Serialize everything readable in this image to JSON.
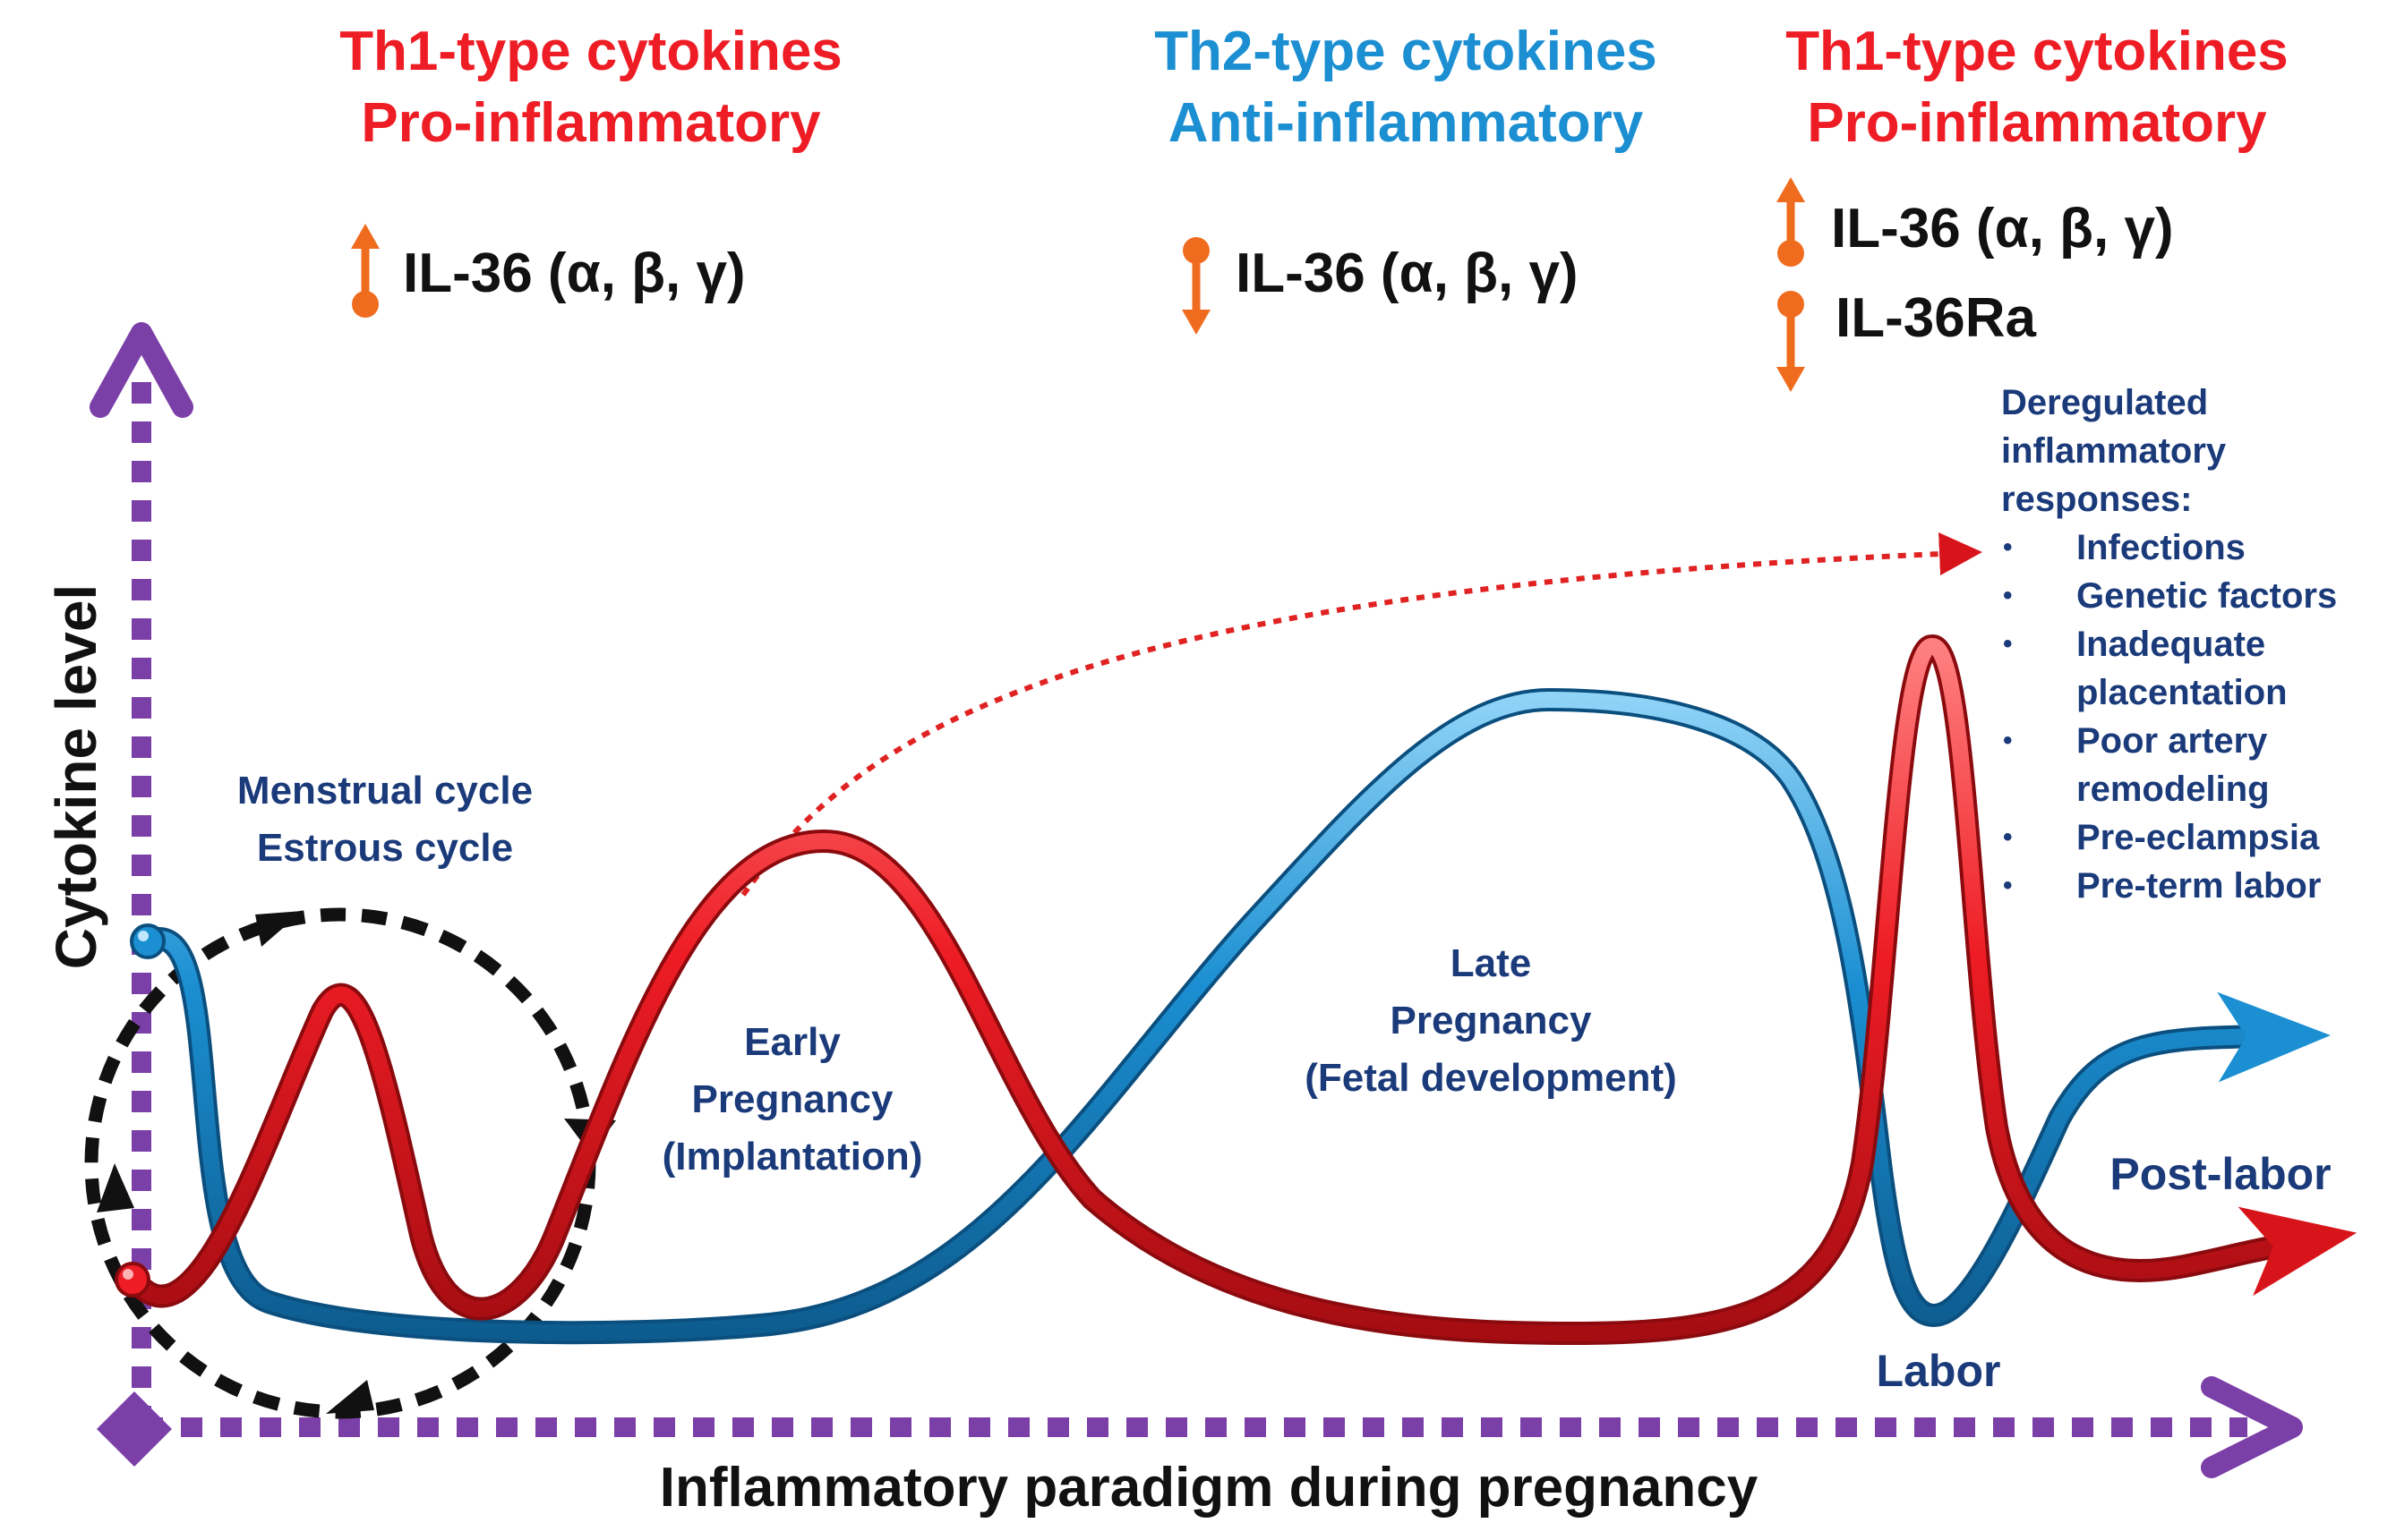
{
  "colors": {
    "th1": "#ee1c24",
    "th2": "#1b8fd2",
    "arrow_up_down": "#ef6c1f",
    "axis": "#7b3fa8",
    "navy": "#1a3a7a",
    "cycle": "#111111"
  },
  "headers": [
    {
      "line1": "Th1-type cytokines",
      "line2": "Pro-inflammatory"
    },
    {
      "line1": "Th2-type cytokines",
      "line2": "Anti-inflammatory"
    },
    {
      "line1": "Th1-type cytokines",
      "line2": "Pro-inflammatory"
    }
  ],
  "il36_labels": {
    "early": "IL-36 (α, β, γ)",
    "mid": "IL-36 (α, β, γ)",
    "late_il36": "IL-36 (α, β, γ)",
    "late_ra": "IL-36Ra"
  },
  "indicators": [
    {
      "id": "early",
      "direction": "up",
      "icon": "increase-arrow-icon"
    },
    {
      "id": "mid",
      "direction": "down",
      "icon": "decrease-arrow-icon"
    },
    {
      "id": "late_il36",
      "direction": "up",
      "icon": "increase-arrow-icon"
    },
    {
      "id": "late_ra",
      "direction": "down",
      "icon": "decrease-arrow-icon"
    }
  ],
  "axes": {
    "y_label": "Cytokine level",
    "x_label": "Inflammatory paradigm during pregnancy"
  },
  "phases": {
    "cycle_line1": "Menstrual cycle",
    "cycle_line2": "Estrous cycle",
    "early_line1": "Early",
    "early_line2": "Pregnancy",
    "early_line3": "(Implantation)",
    "late_line1": "Late",
    "late_line2": "Pregnancy",
    "late_line3": "(Fetal development)",
    "labor": "Labor",
    "post_labor": "Post-labor"
  },
  "deregulated": {
    "title_line1": "Deregulated",
    "title_line2": "inflammatory",
    "title_line3": "responses:",
    "items": [
      "Infections",
      "Genetic factors",
      "Inadequate placentation",
      "Poor artery remodeling",
      "Pre-eclampsia",
      "Pre-term labor"
    ]
  }
}
